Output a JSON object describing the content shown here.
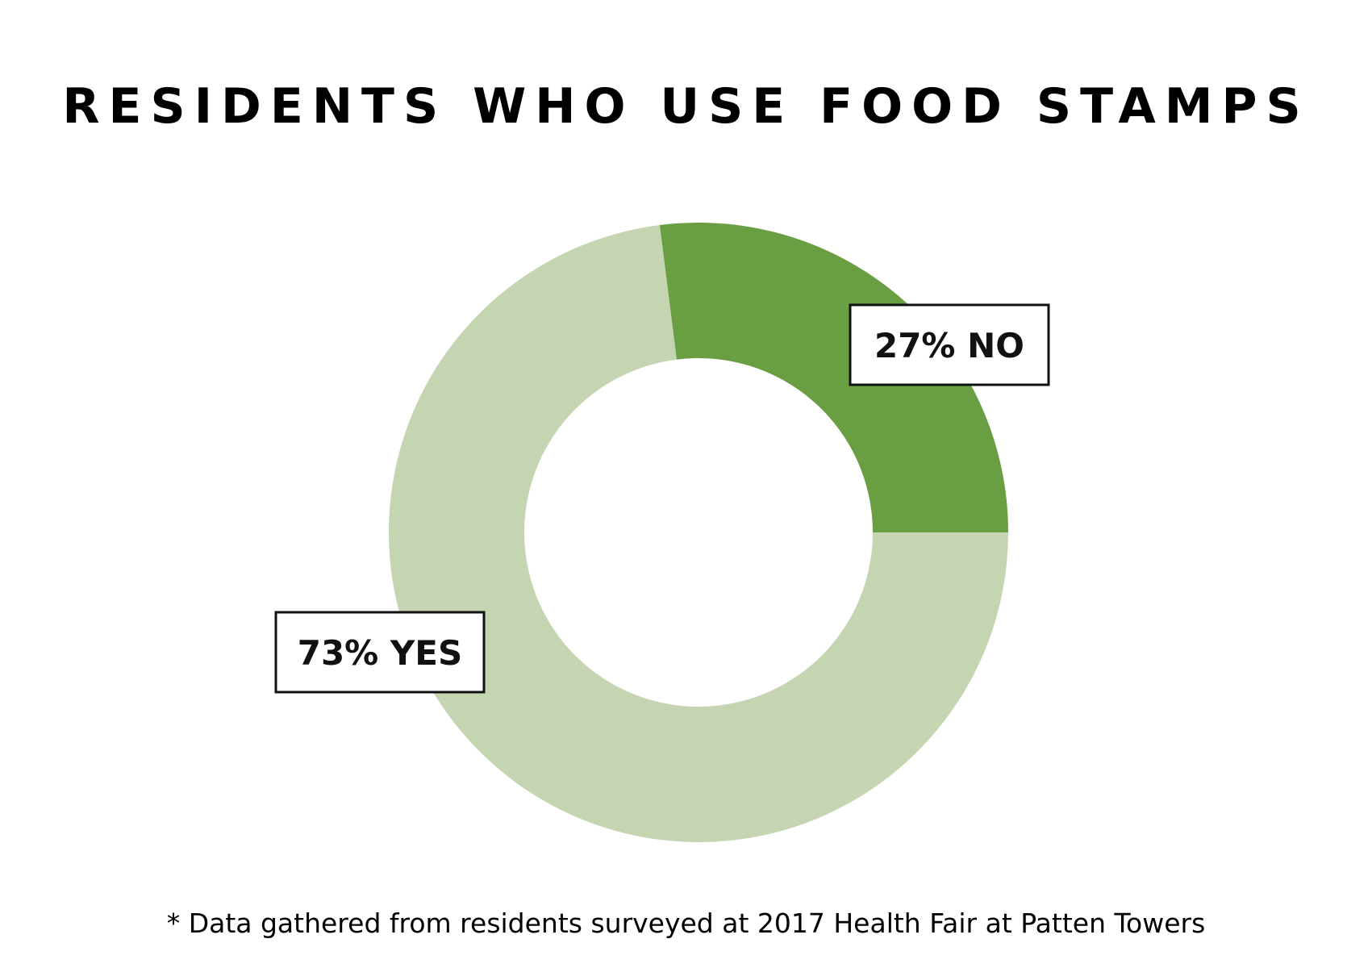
{
  "chart_data": {
    "type": "pie",
    "title": "RESIDENTS WHO USE FOOD STAMPS",
    "categories": [
      "NO",
      "YES"
    ],
    "values": [
      27,
      73
    ],
    "labels": [
      "27% NO",
      "73% YES"
    ],
    "colors": [
      "#699e42",
      "#c5d5b2"
    ],
    "donut": true,
    "legend": "none",
    "footnote": "* Data gathered from residents surveyed at 2017 Health Fair at Patten Towers"
  }
}
